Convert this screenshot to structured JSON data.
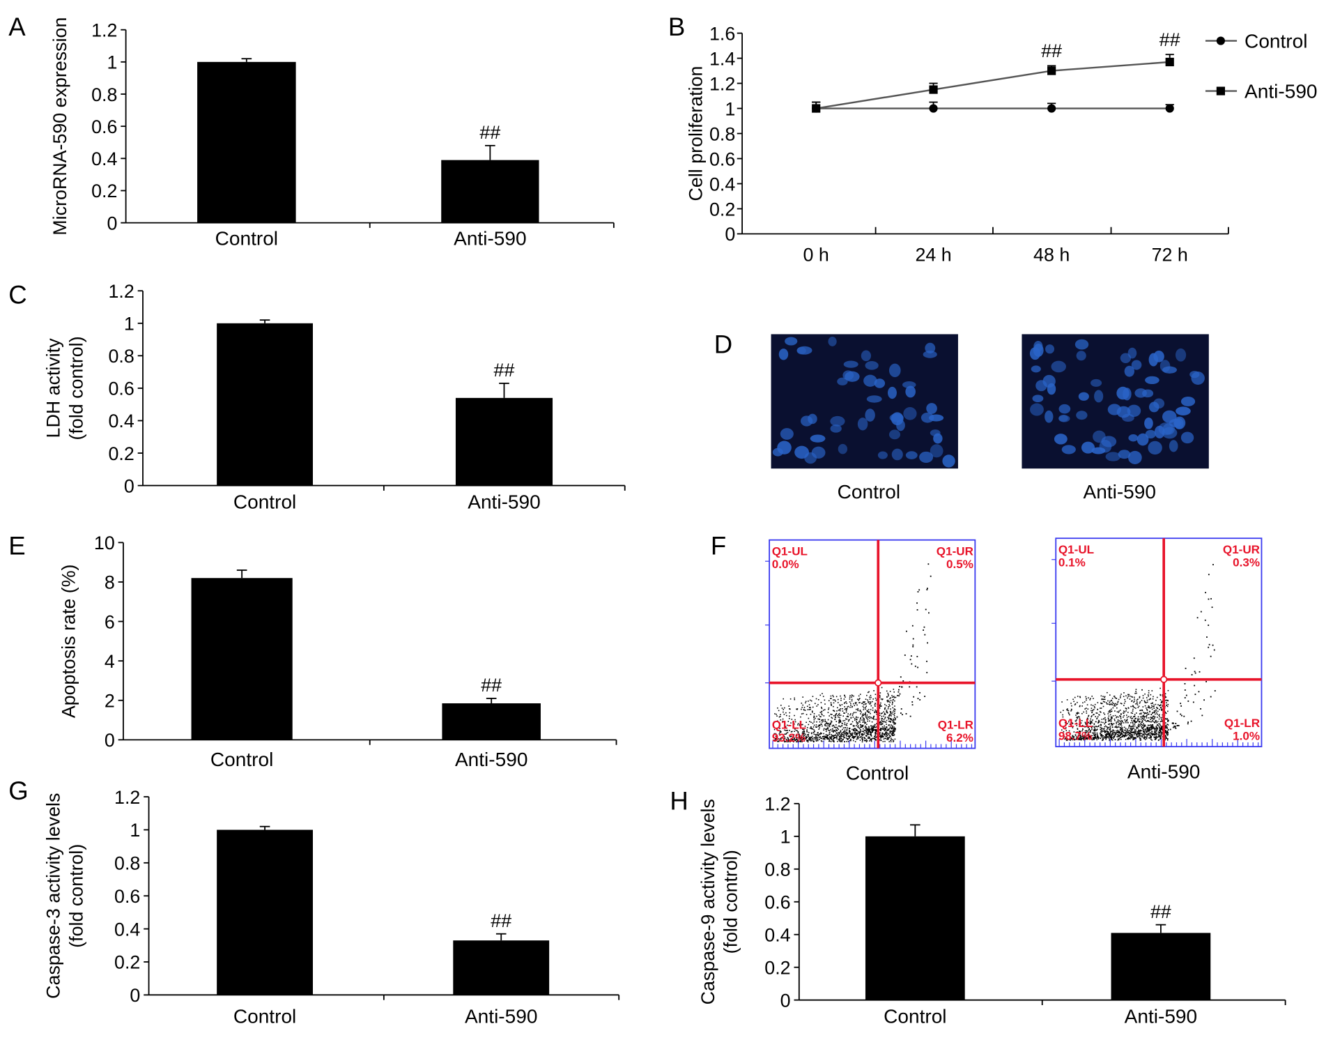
{
  "chart_data": [
    {
      "id": "A",
      "type": "bar",
      "panel_letter": "A",
      "title": "",
      "xlabel": "",
      "ylabel": [
        "MicroRNA-590 expression"
      ],
      "categories": [
        "Control",
        "Anti-590"
      ],
      "values": [
        1.0,
        0.39
      ],
      "errors": [
        0.02,
        0.09
      ],
      "annotations": [
        "",
        "##"
      ],
      "ylim": [
        0,
        1.2
      ],
      "yticks": [
        "0",
        "0.2",
        "0.4",
        "0.6",
        "0.8",
        "1",
        "1.2"
      ],
      "ystep": 0.2,
      "grid": false
    },
    {
      "id": "B",
      "type": "line",
      "panel_letter": "B",
      "ylabel": "Cell proliferation",
      "xlabel": "",
      "categories": [
        "0 h",
        "24 h",
        "48 h",
        "72 h"
      ],
      "series": [
        {
          "name": "Control",
          "marker": "circle",
          "values": [
            1.0,
            1.0,
            1.0,
            1.0
          ],
          "errors": [
            0.05,
            0.05,
            0.04,
            0.03
          ],
          "annotations": [
            "",
            "",
            "",
            ""
          ]
        },
        {
          "name": "Anti-590",
          "marker": "square",
          "values": [
            1.0,
            1.15,
            1.3,
            1.37
          ],
          "errors": [
            0.05,
            0.05,
            0.04,
            0.06
          ],
          "annotations": [
            "",
            "",
            "##",
            "##"
          ]
        }
      ],
      "ylim": [
        0,
        1.6
      ],
      "yticks": [
        "0",
        "0.2",
        "0.4",
        "0.6",
        "0.8",
        "1",
        "1.2",
        "1.4",
        "1.6"
      ],
      "ystep": 0.2,
      "legend": "right",
      "grid": false
    },
    {
      "id": "C",
      "type": "bar",
      "panel_letter": "C",
      "ylabel": [
        "LDH activity",
        "(fold control)"
      ],
      "categories": [
        "Control",
        "Anti-590"
      ],
      "values": [
        1.0,
        0.54
      ],
      "errors": [
        0.02,
        0.09
      ],
      "annotations": [
        "",
        "##"
      ],
      "ylim": [
        0,
        1.2
      ],
      "yticks": [
        "0",
        "0.2",
        "0.4",
        "0.6",
        "0.8",
        "1",
        "1.2"
      ],
      "ystep": 0.2
    },
    {
      "id": "E",
      "type": "bar",
      "panel_letter": "E",
      "ylabel": [
        "Apoptosis rate (%)"
      ],
      "categories": [
        "Control",
        "Anti-590"
      ],
      "values": [
        8.2,
        1.85
      ],
      "errors": [
        0.4,
        0.25
      ],
      "annotations": [
        "",
        "##"
      ],
      "ylim": [
        0,
        10
      ],
      "yticks": [
        "0",
        "2",
        "4",
        "6",
        "8",
        "10"
      ],
      "ystep": 2
    },
    {
      "id": "G",
      "type": "bar",
      "panel_letter": "G",
      "ylabel": [
        "Caspase-3 activity levels",
        "(fold control)"
      ],
      "categories": [
        "Control",
        "Anti-590"
      ],
      "values": [
        1.0,
        0.33
      ],
      "errors": [
        0.02,
        0.04
      ],
      "annotations": [
        "",
        "##"
      ],
      "ylim": [
        0,
        1.2
      ],
      "yticks": [
        "0",
        "0.2",
        "0.4",
        "0.6",
        "0.8",
        "1",
        "1.2"
      ],
      "ystep": 0.2
    },
    {
      "id": "H",
      "type": "bar",
      "panel_letter": "H",
      "ylabel": [
        "Caspase-9 activity levels",
        "(fold control)"
      ],
      "categories": [
        "Control",
        "Anti-590"
      ],
      "values": [
        1.0,
        0.41
      ],
      "errors": [
        0.07,
        0.05
      ],
      "annotations": [
        "",
        "##"
      ],
      "ylim": [
        0,
        1.2
      ],
      "yticks": [
        "0",
        "0.2",
        "0.4",
        "0.6",
        "0.8",
        "1",
        "1.2"
      ],
      "ystep": 0.2
    }
  ],
  "panel_d": {
    "letter": "D",
    "images": [
      {
        "label": "Control"
      },
      {
        "label": "Anti-590"
      }
    ]
  },
  "panel_f": {
    "letter": "F",
    "plots": [
      {
        "label": "Control",
        "quadrants": {
          "ul": [
            "Q1-UL",
            "0.0%"
          ],
          "ur": [
            "Q1-UR",
            "0.5%"
          ],
          "ll": [
            "Q1-LL",
            "93.2%"
          ],
          "lr": [
            "Q1-LR",
            "6.2%"
          ]
        }
      },
      {
        "label": "Anti-590",
        "quadrants": {
          "ul": [
            "Q1-UL",
            "0.1%"
          ],
          "ur": [
            "Q1-UR",
            "0.3%"
          ],
          "ll": [
            "Q1-LL",
            "98.7%"
          ],
          "lr": [
            "Q1-LR",
            "1.0%"
          ]
        }
      }
    ]
  },
  "colors": {
    "bar": "#000000",
    "line": "#555555",
    "gate": "#e8142a",
    "frame": "#3b3bf0",
    "micro_bg": "#0a1030",
    "nucleus": "#2a64c8"
  }
}
